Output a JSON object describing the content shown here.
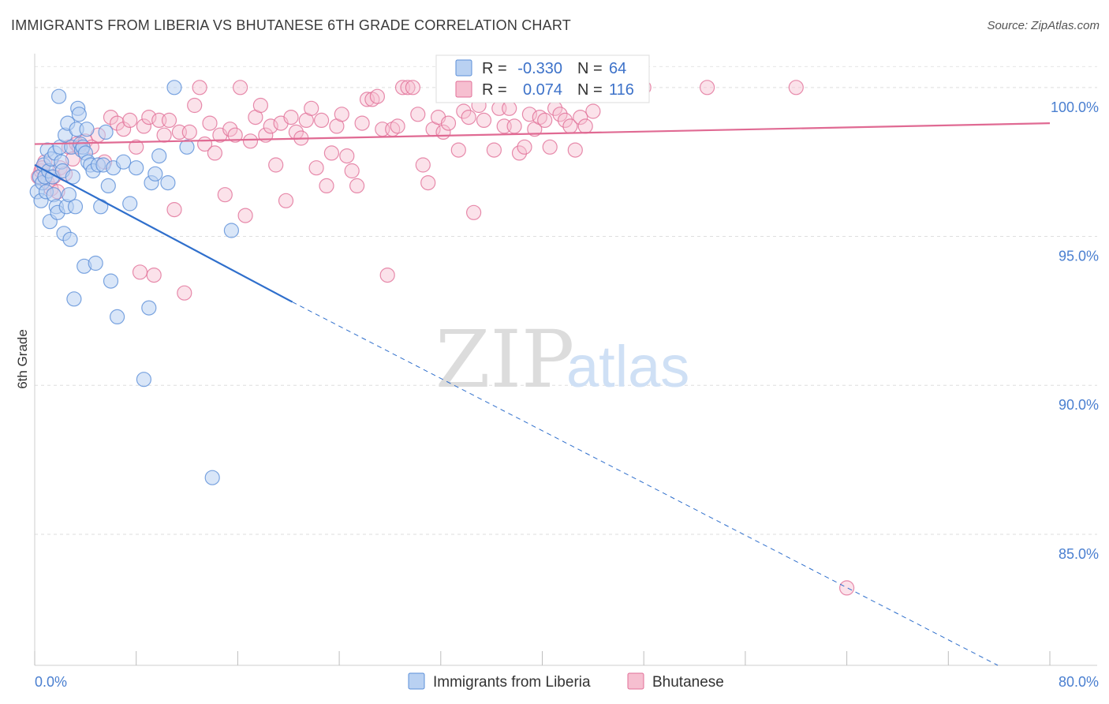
{
  "title": "IMMIGRANTS FROM LIBERIA VS BHUTANESE 6TH GRADE CORRELATION CHART",
  "source": "Source: ZipAtlas.com",
  "colors": {
    "blue": "#5b8fd8",
    "blue_fill": "#b9d1f2",
    "pink": "#e16f97",
    "pink_fill": "#f6bfd0",
    "blue_line": "#2f6fcc",
    "pink_line": "#e06a93"
  },
  "chart_data": {
    "type": "scatter",
    "ylabel": "6th Grade",
    "xlim": [
      0,
      80
    ],
    "ylim": [
      80.6,
      101.4
    ],
    "x_tick_labels": [
      "0.0%",
      "80.0%"
    ],
    "y_ticks": [
      85,
      90,
      95,
      100
    ],
    "y_tick_labels": [
      "85.0%",
      "90.0%",
      "95.0%",
      "100.0%"
    ],
    "legend_entries": [
      {
        "r_label": "R =",
        "r_value": "-0.330",
        "n_label": "N =",
        "n_value": "64"
      },
      {
        "r_label": "R =",
        "r_value": "0.074",
        "n_label": "N =",
        "n_value": "116"
      }
    ],
    "series": [
      {
        "name": "Immigrants from Liberia",
        "color": "#5b8fd8",
        "trend": {
          "x0": 0,
          "y0": 97.4,
          "x1": 20.3,
          "y1": 92.8,
          "dash_to_x": 75.9,
          "dash_to_y": 80.6
        },
        "points": [
          [
            0.2,
            96.5
          ],
          [
            0.4,
            97.0
          ],
          [
            0.5,
            96.2
          ],
          [
            0.6,
            96.8
          ],
          [
            0.7,
            97.4
          ],
          [
            0.8,
            97.0
          ],
          [
            0.9,
            96.5
          ],
          [
            1.0,
            97.9
          ],
          [
            1.1,
            97.2
          ],
          [
            1.2,
            95.5
          ],
          [
            1.3,
            97.6
          ],
          [
            1.4,
            97.0
          ],
          [
            1.5,
            96.4
          ],
          [
            1.6,
            97.8
          ],
          [
            1.7,
            96.0
          ],
          [
            1.8,
            95.8
          ],
          [
            1.9,
            99.7
          ],
          [
            2.0,
            98.0
          ],
          [
            2.1,
            97.5
          ],
          [
            2.2,
            97.2
          ],
          [
            2.3,
            95.1
          ],
          [
            2.4,
            98.4
          ],
          [
            2.5,
            96.0
          ],
          [
            2.6,
            98.8
          ],
          [
            2.7,
            96.4
          ],
          [
            2.8,
            94.9
          ],
          [
            2.9,
            98.0
          ],
          [
            3.0,
            97.0
          ],
          [
            3.1,
            92.9
          ],
          [
            3.2,
            96.0
          ],
          [
            3.3,
            98.6
          ],
          [
            3.4,
            99.3
          ],
          [
            3.5,
            99.1
          ],
          [
            3.6,
            98.1
          ],
          [
            3.7,
            97.9
          ],
          [
            3.8,
            98.0
          ],
          [
            3.9,
            94.0
          ],
          [
            4.0,
            97.8
          ],
          [
            4.1,
            98.6
          ],
          [
            4.2,
            97.5
          ],
          [
            4.4,
            97.4
          ],
          [
            4.6,
            97.2
          ],
          [
            4.8,
            94.1
          ],
          [
            5.0,
            97.4
          ],
          [
            5.2,
            96.0
          ],
          [
            5.4,
            97.4
          ],
          [
            5.6,
            98.5
          ],
          [
            5.8,
            96.7
          ],
          [
            6.0,
            93.5
          ],
          [
            6.2,
            97.3
          ],
          [
            6.5,
            92.3
          ],
          [
            7.0,
            97.5
          ],
          [
            7.5,
            96.1
          ],
          [
            8.0,
            97.3
          ],
          [
            8.6,
            90.2
          ],
          [
            9.0,
            92.6
          ],
          [
            9.2,
            96.8
          ],
          [
            9.5,
            97.1
          ],
          [
            9.8,
            97.7
          ],
          [
            10.5,
            96.8
          ],
          [
            11.0,
            100.0
          ],
          [
            12.0,
            98.0
          ],
          [
            14.0,
            86.9
          ],
          [
            15.5,
            95.2
          ]
        ]
      },
      {
        "name": "Bhutanese",
        "color": "#e16f97",
        "trend": {
          "x0": 0,
          "y0": 98.1,
          "x1": 80,
          "y1": 98.8
        },
        "points": [
          [
            0.3,
            97.0
          ],
          [
            0.5,
            97.2
          ],
          [
            0.8,
            97.5
          ],
          [
            1.0,
            96.8
          ],
          [
            1.3,
            96.6
          ],
          [
            1.5,
            97.0
          ],
          [
            1.8,
            96.5
          ],
          [
            2.0,
            97.3
          ],
          [
            2.4,
            97.1
          ],
          [
            2.7,
            98.0
          ],
          [
            3.0,
            97.6
          ],
          [
            3.3,
            98.1
          ],
          [
            3.5,
            98.0
          ],
          [
            4.0,
            98.2
          ],
          [
            4.5,
            98.0
          ],
          [
            5.0,
            98.4
          ],
          [
            5.5,
            97.5
          ],
          [
            6.0,
            99.0
          ],
          [
            6.5,
            98.8
          ],
          [
            7.0,
            98.6
          ],
          [
            7.5,
            98.9
          ],
          [
            8.0,
            98.0
          ],
          [
            8.3,
            93.8
          ],
          [
            8.6,
            98.7
          ],
          [
            9.0,
            99.0
          ],
          [
            9.4,
            93.7
          ],
          [
            9.8,
            98.9
          ],
          [
            10.2,
            98.4
          ],
          [
            10.6,
            98.9
          ],
          [
            11.0,
            95.9
          ],
          [
            11.4,
            98.5
          ],
          [
            11.8,
            93.1
          ],
          [
            12.2,
            98.5
          ],
          [
            12.6,
            99.4
          ],
          [
            13.0,
            100.0
          ],
          [
            13.4,
            98.1
          ],
          [
            13.8,
            98.8
          ],
          [
            14.2,
            97.8
          ],
          [
            14.6,
            98.4
          ],
          [
            15.0,
            96.4
          ],
          [
            15.4,
            98.6
          ],
          [
            15.8,
            98.4
          ],
          [
            16.2,
            100.0
          ],
          [
            16.6,
            95.7
          ],
          [
            17.0,
            98.2
          ],
          [
            17.4,
            99.0
          ],
          [
            17.8,
            99.4
          ],
          [
            18.2,
            98.4
          ],
          [
            18.6,
            98.7
          ],
          [
            19.0,
            97.4
          ],
          [
            19.4,
            98.8
          ],
          [
            19.8,
            96.2
          ],
          [
            20.2,
            99.0
          ],
          [
            20.6,
            98.5
          ],
          [
            21.0,
            98.3
          ],
          [
            21.4,
            98.9
          ],
          [
            21.8,
            99.3
          ],
          [
            22.2,
            97.3
          ],
          [
            22.6,
            98.9
          ],
          [
            23.0,
            96.7
          ],
          [
            23.4,
            97.8
          ],
          [
            23.8,
            98.7
          ],
          [
            24.2,
            99.1
          ],
          [
            24.6,
            97.7
          ],
          [
            25.0,
            97.2
          ],
          [
            25.4,
            96.7
          ],
          [
            25.8,
            98.8
          ],
          [
            26.2,
            99.6
          ],
          [
            26.6,
            99.6
          ],
          [
            27.0,
            99.7
          ],
          [
            27.4,
            98.6
          ],
          [
            27.8,
            93.7
          ],
          [
            28.2,
            98.6
          ],
          [
            28.6,
            98.7
          ],
          [
            29.0,
            100.0
          ],
          [
            29.4,
            100.0
          ],
          [
            29.8,
            100.0
          ],
          [
            30.2,
            99.1
          ],
          [
            30.6,
            97.4
          ],
          [
            31.0,
            96.8
          ],
          [
            31.4,
            98.6
          ],
          [
            31.8,
            99.0
          ],
          [
            32.2,
            98.5
          ],
          [
            32.6,
            98.8
          ],
          [
            33.0,
            100.0
          ],
          [
            33.4,
            97.9
          ],
          [
            33.8,
            99.2
          ],
          [
            34.2,
            99.0
          ],
          [
            34.6,
            95.8
          ],
          [
            35.0,
            99.4
          ],
          [
            35.4,
            98.9
          ],
          [
            35.8,
            100.0
          ],
          [
            36.2,
            97.9
          ],
          [
            36.6,
            99.3
          ],
          [
            37.0,
            98.7
          ],
          [
            37.4,
            99.3
          ],
          [
            37.8,
            98.7
          ],
          [
            38.2,
            97.8
          ],
          [
            38.6,
            98.0
          ],
          [
            39.0,
            99.1
          ],
          [
            39.4,
            98.6
          ],
          [
            39.8,
            99.0
          ],
          [
            40.2,
            98.9
          ],
          [
            40.6,
            98.0
          ],
          [
            41.0,
            99.3
          ],
          [
            41.4,
            99.1
          ],
          [
            41.8,
            98.9
          ],
          [
            42.2,
            98.7
          ],
          [
            42.6,
            97.9
          ],
          [
            43.0,
            99.0
          ],
          [
            43.4,
            98.7
          ],
          [
            44.0,
            99.2
          ],
          [
            46.0,
            100.0
          ],
          [
            48.0,
            100.0
          ],
          [
            53.0,
            100.0
          ],
          [
            60.0,
            100.0
          ],
          [
            64.0,
            83.2
          ],
          [
            0.6,
            97.3
          ]
        ]
      }
    ],
    "bottom_legend": [
      "Immigrants from Liberia",
      "Bhutanese"
    ],
    "watermark": {
      "zip": "ZIP",
      "atlas": "atlas"
    }
  }
}
